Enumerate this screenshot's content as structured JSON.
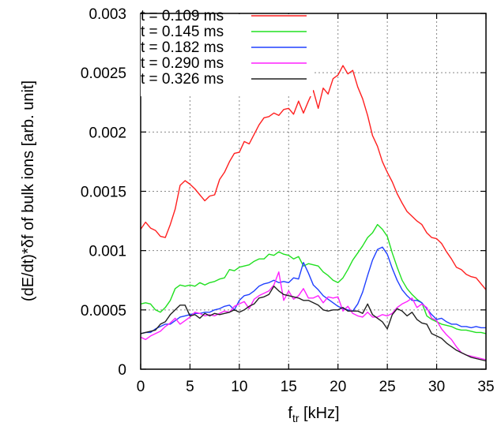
{
  "chart_data": {
    "type": "line",
    "xlabel_main": "f",
    "xlabel_sub": "tr",
    "xlabel_unit": " [kHz]",
    "ylabel": "(dE/dt)*δf of bulk ions [arb. unit]",
    "xlim": [
      0,
      35
    ],
    "ylim": [
      0,
      0.003
    ],
    "x_ticks": [
      0,
      5,
      10,
      15,
      20,
      25,
      30,
      35
    ],
    "y_ticks": [
      0,
      0.0005,
      0.001,
      0.0015,
      0.002,
      0.0025,
      0.003
    ],
    "x_tick_labels": [
      "0",
      "5",
      "10",
      "15",
      "20",
      "25",
      "30",
      "35"
    ],
    "y_tick_labels": [
      "0",
      "0.0005",
      "0.001",
      "0.0015",
      "0.002",
      "0.0025",
      "0.003"
    ],
    "grid": true,
    "legend_position": "top-left",
    "series": [
      {
        "name": "t = 0.109 ms",
        "color": "#ff2020",
        "x": [
          0,
          0.5,
          1,
          1.5,
          2,
          2.5,
          3,
          3.5,
          4,
          4.5,
          5,
          5.5,
          6,
          6.5,
          7,
          7.5,
          8,
          8.5,
          9,
          9.5,
          10,
          10.5,
          11,
          11.5,
          12,
          12.5,
          13,
          13.5,
          14,
          14.5,
          15,
          15.5,
          16,
          16.5,
          17,
          17.5,
          18,
          18.5,
          19,
          19.5,
          20,
          20.5,
          21,
          21.5,
          22,
          22.5,
          23,
          23.5,
          24,
          24.5,
          25,
          25.5,
          26,
          26.5,
          27,
          27.5,
          28,
          28.5,
          29,
          29.5,
          30,
          30.5,
          31,
          31.5,
          32,
          32.5,
          33,
          33.5,
          34,
          34.5,
          35
        ],
        "y": [
          0.00118,
          0.00124,
          0.00119,
          0.00117,
          0.00112,
          0.00111,
          0.00122,
          0.00135,
          0.00155,
          0.00159,
          0.00156,
          0.00152,
          0.00147,
          0.00142,
          0.00146,
          0.00147,
          0.0016,
          0.00166,
          0.00175,
          0.00182,
          0.00183,
          0.00192,
          0.0019,
          0.00198,
          0.00206,
          0.00212,
          0.00213,
          0.00216,
          0.00214,
          0.00219,
          0.0022,
          0.00215,
          0.00226,
          0.00216,
          0.00226,
          0.00235,
          0.0022,
          0.00237,
          0.00232,
          0.00245,
          0.00248,
          0.00256,
          0.00249,
          0.00252,
          0.00238,
          0.00228,
          0.00214,
          0.00197,
          0.00188,
          0.00175,
          0.00166,
          0.00158,
          0.00148,
          0.0014,
          0.00133,
          0.00129,
          0.00125,
          0.00122,
          0.00115,
          0.00111,
          0.0011,
          0.00106,
          0.00099,
          0.00093,
          0.00086,
          0.00084,
          0.0008,
          0.00078,
          0.00077,
          0.00072,
          0.00067
        ]
      },
      {
        "name": "t = 0.145 ms",
        "color": "#20e020",
        "x": [
          0,
          0.5,
          1,
          1.5,
          2,
          2.5,
          3,
          3.5,
          4,
          4.5,
          5,
          5.5,
          6,
          6.5,
          7,
          7.5,
          8,
          8.5,
          9,
          9.5,
          10,
          10.5,
          11,
          11.5,
          12,
          12.5,
          13,
          13.5,
          14,
          14.5,
          15,
          15.5,
          16,
          16.5,
          17,
          17.5,
          18,
          18.5,
          19,
          19.5,
          20,
          20.5,
          21,
          21.5,
          22,
          22.5,
          23,
          23.5,
          24,
          24.5,
          25,
          25.5,
          26,
          26.5,
          27,
          27.5,
          28,
          28.5,
          29,
          29.5,
          30,
          30.5,
          31,
          31.5,
          32,
          32.5,
          33,
          33.5,
          34,
          34.5,
          35
        ],
        "y": [
          0.00055,
          0.00056,
          0.00055,
          0.0005,
          0.00048,
          0.00052,
          0.00058,
          0.00068,
          0.00071,
          0.0007,
          0.00071,
          0.0007,
          0.00073,
          0.00071,
          0.00073,
          0.00074,
          0.00076,
          0.00077,
          0.00084,
          0.00083,
          0.00086,
          0.00087,
          0.00088,
          0.00091,
          0.00093,
          0.00093,
          0.00097,
          0.00096,
          0.00099,
          0.00097,
          0.00096,
          0.00093,
          0.00095,
          0.00087,
          0.00089,
          0.00088,
          0.00087,
          0.00082,
          0.00079,
          0.00075,
          0.00073,
          0.00077,
          0.00084,
          0.00092,
          0.00098,
          0.00104,
          0.00111,
          0.00115,
          0.00122,
          0.00118,
          0.00112,
          0.00098,
          0.00086,
          0.00075,
          0.00068,
          0.00063,
          0.00059,
          0.00056,
          0.00045,
          0.00042,
          0.0004,
          0.00038,
          0.00037,
          0.00036,
          0.00034,
          0.00033,
          0.00033,
          0.00032,
          0.00031,
          0.00031,
          0.0003
        ]
      },
      {
        "name": "t = 0.182 ms",
        "color": "#2040ff",
        "x": [
          0,
          0.5,
          1,
          1.5,
          2,
          2.5,
          3,
          3.5,
          4,
          4.5,
          5,
          5.5,
          6,
          6.5,
          7,
          7.5,
          8,
          8.5,
          9,
          9.5,
          10,
          10.5,
          11,
          11.5,
          12,
          12.5,
          13,
          13.5,
          14,
          14.5,
          15,
          15.5,
          16,
          16.5,
          17,
          17.5,
          18,
          18.5,
          19,
          19.5,
          20,
          20.5,
          21,
          21.5,
          22,
          22.5,
          23,
          23.5,
          24,
          24.5,
          25,
          25.5,
          26,
          26.5,
          27,
          27.5,
          28,
          28.5,
          29,
          29.5,
          30,
          30.5,
          31,
          31.5,
          32,
          32.5,
          33,
          33.5,
          34,
          34.5,
          35
        ],
        "y": [
          0.0003,
          0.00031,
          0.00031,
          0.00034,
          0.00036,
          0.00038,
          0.00038,
          0.00041,
          0.00044,
          0.00045,
          0.00046,
          0.00047,
          0.00047,
          0.00048,
          0.00048,
          0.0005,
          0.00051,
          0.00053,
          0.00054,
          0.0005,
          0.00058,
          0.00062,
          0.00063,
          0.00066,
          0.0007,
          0.00072,
          0.00073,
          0.00075,
          0.00073,
          0.00074,
          0.00073,
          0.00077,
          0.00076,
          0.0009,
          0.00081,
          0.00071,
          0.00067,
          0.00062,
          0.00059,
          0.00056,
          0.00053,
          0.00051,
          0.0005,
          0.00049,
          0.00055,
          0.00065,
          0.00079,
          0.00092,
          0.00101,
          0.00103,
          0.00097,
          0.00085,
          0.00075,
          0.00067,
          0.00062,
          0.00058,
          0.00058,
          0.00056,
          0.00051,
          0.00046,
          0.00042,
          0.00043,
          0.0004,
          0.00038,
          0.00038,
          0.00036,
          0.00036,
          0.00035,
          0.00036,
          0.00035,
          0.00035
        ]
      },
      {
        "name": "t = 0.290 ms",
        "color": "#ff20ff",
        "x": [
          0,
          0.5,
          1,
          1.5,
          2,
          2.5,
          3,
          3.5,
          4,
          4.5,
          5,
          5.5,
          6,
          6.5,
          7,
          7.5,
          8,
          8.5,
          9,
          9.5,
          10,
          10.5,
          11,
          11.5,
          12,
          12.5,
          13,
          13.5,
          14,
          14.5,
          15,
          15.5,
          16,
          16.5,
          17,
          17.5,
          18,
          18.5,
          19,
          19.5,
          20,
          20.5,
          21,
          21.5,
          22,
          22.5,
          23,
          23.5,
          24,
          24.5,
          25,
          25.5,
          26,
          26.5,
          27,
          27.5,
          28,
          28.5,
          29,
          29.5,
          30,
          30.5,
          31,
          31.5,
          32,
          32.5,
          33,
          33.5,
          34,
          34.5,
          35
        ],
        "y": [
          0.00027,
          0.00025,
          0.00028,
          0.0003,
          0.00032,
          0.00036,
          0.00039,
          0.00043,
          0.00038,
          0.00041,
          0.00044,
          0.00048,
          0.00047,
          0.00045,
          0.00046,
          0.00045,
          0.00047,
          0.00049,
          0.00048,
          0.00053,
          0.00055,
          0.00057,
          0.00051,
          0.00059,
          0.00062,
          0.00064,
          0.00066,
          0.00071,
          0.00082,
          0.00058,
          0.00066,
          0.00059,
          0.00062,
          0.00068,
          0.0006,
          0.0006,
          0.00062,
          0.00056,
          0.00061,
          0.0006,
          0.00061,
          0.00049,
          0.00053,
          0.00047,
          0.00045,
          0.00044,
          0.00048,
          0.00044,
          0.00044,
          0.00046,
          0.00045,
          0.00047,
          0.00052,
          0.00055,
          0.00057,
          0.0006,
          0.00052,
          0.00055,
          0.00052,
          0.00043,
          0.00041,
          0.00034,
          0.00029,
          0.00025,
          0.00019,
          0.00014,
          0.00012,
          0.00011,
          0.0001,
          9e-05,
          8e-05
        ]
      },
      {
        "name": "t = 0.326 ms",
        "color": "#202020",
        "x": [
          0,
          0.5,
          1,
          1.5,
          2,
          2.5,
          3,
          3.5,
          4,
          4.5,
          5,
          5.5,
          6,
          6.5,
          7,
          7.5,
          8,
          8.5,
          9,
          9.5,
          10,
          10.5,
          11,
          11.5,
          12,
          12.5,
          13,
          13.5,
          14,
          14.5,
          15,
          15.5,
          16,
          16.5,
          17,
          17.5,
          18,
          18.5,
          19,
          19.5,
          20,
          20.5,
          21,
          21.5,
          22,
          22.5,
          23,
          23.5,
          24,
          24.5,
          25,
          25.5,
          26,
          26.5,
          27,
          27.5,
          28,
          28.5,
          29,
          29.5,
          30,
          30.5,
          31,
          31.5,
          32,
          32.5,
          33,
          33.5,
          34,
          34.5,
          35
        ],
        "y": [
          0.0003,
          0.00031,
          0.00032,
          0.00033,
          0.00038,
          0.0004,
          0.00046,
          0.0005,
          0.00054,
          0.00054,
          0.00045,
          0.00046,
          0.00043,
          0.00047,
          0.00045,
          0.00047,
          0.00046,
          0.00047,
          0.00048,
          0.0005,
          0.00048,
          0.0005,
          0.00053,
          0.00055,
          0.0006,
          0.00061,
          0.00063,
          0.0007,
          0.00066,
          0.00063,
          0.00062,
          0.00061,
          0.0006,
          0.00058,
          0.00058,
          0.00056,
          0.00054,
          0.0005,
          0.00049,
          0.0005,
          0.0005,
          0.00052,
          0.00049,
          0.00049,
          0.00049,
          0.00047,
          0.00055,
          0.00046,
          0.00043,
          0.0004,
          0.00034,
          0.00046,
          0.00051,
          0.00049,
          0.00045,
          0.00048,
          0.00042,
          0.00039,
          0.00038,
          0.0003,
          0.00028,
          0.00026,
          0.00022,
          0.00019,
          0.00016,
          0.00014,
          0.00012,
          0.0001,
          9e-05,
          8e-05,
          7e-05
        ]
      }
    ]
  }
}
